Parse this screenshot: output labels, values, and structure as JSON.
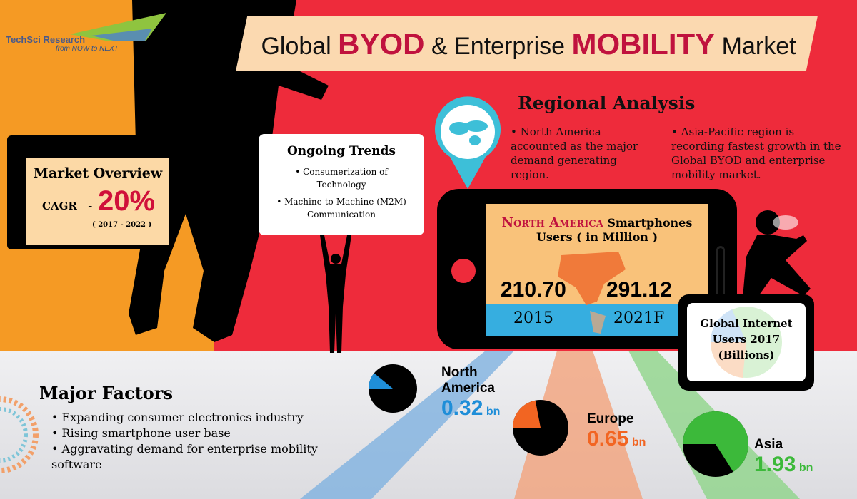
{
  "logo": {
    "name": "TechSci Research",
    "tagline": "from NOW to NEXT"
  },
  "title": {
    "part1": "Global",
    "highlight1": "BYOD",
    "part2": "& Enterprise",
    "highlight2": "MOBILITY",
    "part3": "Market"
  },
  "market_overview": {
    "heading": "Market Overview",
    "cagr_label": "CAGR",
    "dash": "-",
    "cagr_value": "20%",
    "period": "( 2017 - 2022 )"
  },
  "trends": {
    "heading": "Ongoing Trends",
    "items": [
      "Consumerization of Technology",
      "Machine-to-Machine (M2M) Communication"
    ]
  },
  "regional": {
    "heading": "Regional Analysis",
    "points": [
      "North America accounted as the major demand generating region.",
      "Asia-Pacific region is recording fastest growth in the Global BYOD and enterprise mobility market."
    ]
  },
  "phone": {
    "region": "North America",
    "title": "Smartphones",
    "subtitle": "Users ( in Million )",
    "values": [
      {
        "value": "210.70",
        "year": "2015"
      },
      {
        "value": "291.12",
        "year": "2021F"
      }
    ]
  },
  "internet_users": {
    "title": "Global Internet Users 2017 (Billions)"
  },
  "major_factors": {
    "heading": "Major Factors",
    "items": [
      "Expanding consumer electronics industry",
      "Rising smartphone user base",
      "Aggravating demand for enterprise mobility software"
    ]
  },
  "regions": [
    {
      "name": "North America",
      "value": "0.32",
      "unit": "bn",
      "color": "#1f8ed8",
      "share": 0.11
    },
    {
      "name": "Europe",
      "value": "0.65",
      "unit": "bn",
      "color": "#f26522",
      "share": 0.22
    },
    {
      "name": "Asia",
      "value": "1.93",
      "unit": "bn",
      "color": "#3cb93a",
      "share": 0.66
    }
  ]
}
